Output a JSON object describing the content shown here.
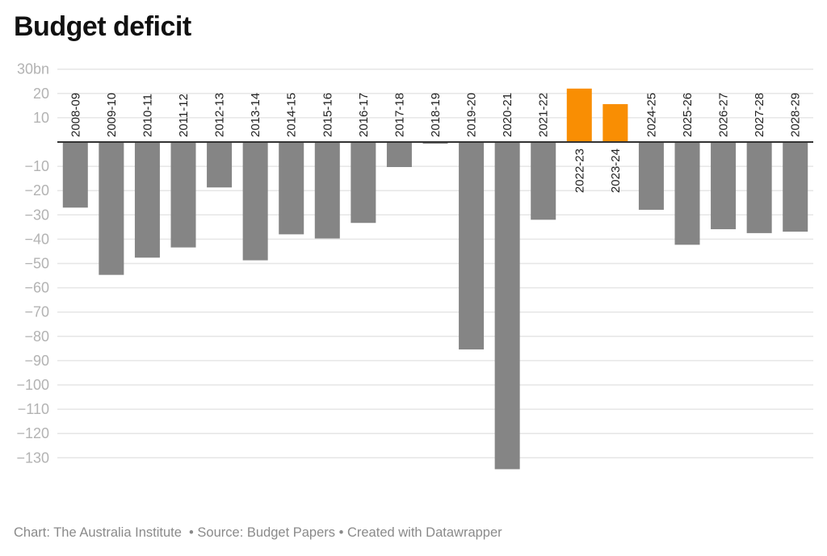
{
  "chart_data": {
    "type": "bar",
    "title": "Budget deficit",
    "xlabel": "",
    "ylabel": "",
    "ylim": [
      -130,
      30
    ],
    "y_ticks": [
      30,
      20,
      10,
      -10,
      -20,
      -30,
      -40,
      -50,
      -60,
      -70,
      -80,
      -90,
      -100,
      -110,
      -120,
      -130
    ],
    "y_tick_labels": [
      "30bn",
      "20",
      "10",
      "−10",
      "−20",
      "−30",
      "−40",
      "−50",
      "−60",
      "−70",
      "−80",
      "−90",
      "−100",
      "−110",
      "−120",
      "−130"
    ],
    "grid": true,
    "categories": [
      "2008-09",
      "2009-10",
      "2010-11",
      "2011-12",
      "2012-13",
      "2013-14",
      "2014-15",
      "2015-16",
      "2016-17",
      "2017-18",
      "2018-19",
      "2019-20",
      "2020-21",
      "2021-22",
      "2022-23",
      "2023-24",
      "2024-25",
      "2025-26",
      "2026-27",
      "2027-28",
      "2028-29"
    ],
    "values": [
      -27.0,
      -54.7,
      -47.6,
      -43.4,
      -18.7,
      -48.7,
      -38.0,
      -39.7,
      -33.3,
      -10.3,
      -0.7,
      -85.4,
      -134.7,
      -32.0,
      22.0,
      15.6,
      -27.9,
      -42.3,
      -35.9,
      -37.5,
      -36.9
    ],
    "colors": {
      "negative": "#858585",
      "positive": "#f98e03"
    }
  },
  "footer": {
    "text": "Chart: The Australia Institute  • Source: Budget Papers • Created with Datawrapper"
  }
}
